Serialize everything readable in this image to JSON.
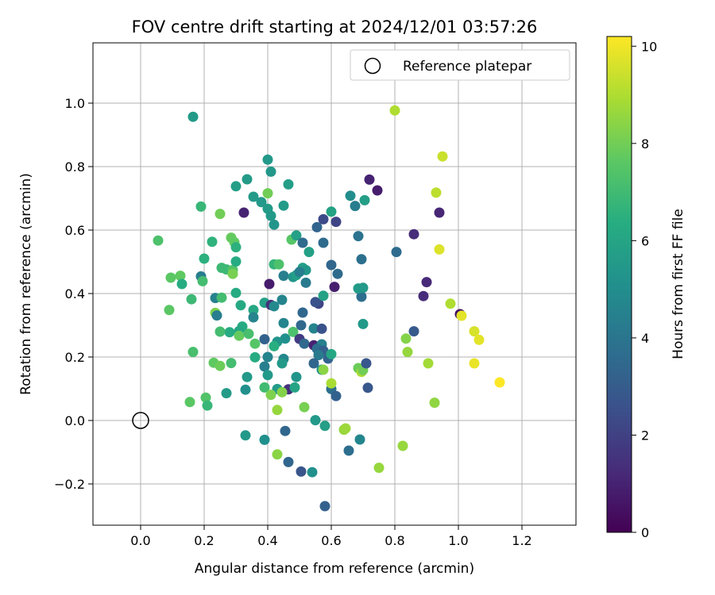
{
  "chart_data": {
    "type": "scatter",
    "title": "FOV centre drift starting at 2024/12/01 03:57:26",
    "xlabel": "Angular distance from reference (arcmin)",
    "ylabel": "Rotation from reference (arcmin)",
    "xlim": [
      -0.15,
      1.37
    ],
    "ylim": [
      -0.33,
      1.19
    ],
    "xticks": [
      0.0,
      0.2,
      0.4,
      0.6,
      0.8,
      1.0,
      1.2
    ],
    "xtick_labels": [
      "0.0",
      "0.2",
      "0.4",
      "0.6",
      "0.8",
      "1.0",
      "1.2"
    ],
    "yticks": [
      -0.2,
      0.0,
      0.2,
      0.4,
      0.6,
      0.8,
      1.0
    ],
    "ytick_labels": [
      "−0.2",
      "0.0",
      "0.2",
      "0.4",
      "0.6",
      "0.8",
      "1.0"
    ],
    "grid": true,
    "colormap": "viridis",
    "colorbar": {
      "label": "Hours from first FF file",
      "range": [
        0,
        10.2
      ],
      "ticks": [
        0,
        2,
        4,
        6,
        8,
        10
      ],
      "tick_labels": [
        "0",
        "2",
        "4",
        "6",
        "8",
        "10"
      ]
    },
    "legend": {
      "position": "top-right",
      "entries": [
        {
          "label": "Reference platepar",
          "marker": "open-circle"
        }
      ]
    },
    "reference_point": {
      "x": 0.0,
      "y": 0.0
    },
    "points": [
      [
        0.165,
        0.957,
        5.6
      ],
      [
        0.4,
        0.822,
        5.5
      ],
      [
        0.41,
        0.784,
        5.4
      ],
      [
        0.335,
        0.76,
        5.6
      ],
      [
        0.3,
        0.738,
        5.7
      ],
      [
        0.465,
        0.744,
        5.7
      ],
      [
        0.355,
        0.705,
        5.6
      ],
      [
        0.38,
        0.688,
        5.5
      ],
      [
        0.4,
        0.667,
        5.6
      ],
      [
        0.45,
        0.677,
        5.6
      ],
      [
        0.41,
        0.645,
        5.5
      ],
      [
        0.42,
        0.617,
        5.3
      ],
      [
        0.4,
        0.716,
        8.0
      ],
      [
        0.19,
        0.674,
        6.8
      ],
      [
        0.25,
        0.651,
        8.0
      ],
      [
        0.325,
        0.655,
        1.0
      ],
      [
        0.055,
        0.567,
        7.3
      ],
      [
        0.225,
        0.563,
        6.6
      ],
      [
        0.285,
        0.576,
        7.8
      ],
      [
        0.295,
        0.562,
        7.7
      ],
      [
        0.3,
        0.546,
        6.5
      ],
      [
        0.2,
        0.51,
        6.5
      ],
      [
        0.255,
        0.481,
        6.9
      ],
      [
        0.27,
        0.476,
        6.9
      ],
      [
        0.29,
        0.474,
        7.4
      ],
      [
        0.3,
        0.501,
        6.3
      ],
      [
        0.29,
        0.462,
        8.1
      ],
      [
        0.095,
        0.45,
        7.6
      ],
      [
        0.125,
        0.456,
        7.7
      ],
      [
        0.19,
        0.454,
        4.3
      ],
      [
        0.195,
        0.439,
        7.1
      ],
      [
        0.13,
        0.43,
        6.3
      ],
      [
        0.16,
        0.382,
        6.9
      ],
      [
        0.09,
        0.348,
        7.6
      ],
      [
        0.235,
        0.386,
        4.5
      ],
      [
        0.255,
        0.387,
        7.1
      ],
      [
        0.3,
        0.402,
        6.3
      ],
      [
        0.315,
        0.363,
        6.2
      ],
      [
        0.235,
        0.339,
        8.2
      ],
      [
        0.24,
        0.331,
        4.3
      ],
      [
        0.355,
        0.348,
        6.1
      ],
      [
        0.355,
        0.325,
        4.6
      ],
      [
        0.39,
        0.371,
        5.8
      ],
      [
        0.41,
        0.364,
        1.4
      ],
      [
        0.445,
        0.38,
        4.6
      ],
      [
        0.42,
        0.36,
        4.8
      ],
      [
        0.405,
        0.43,
        0.8
      ],
      [
        0.42,
        0.492,
        6.7
      ],
      [
        0.435,
        0.492,
        7.3
      ],
      [
        0.45,
        0.456,
        4.4
      ],
      [
        0.475,
        0.57,
        7.5
      ],
      [
        0.49,
        0.583,
        5.8
      ],
      [
        0.51,
        0.56,
        3.6
      ],
      [
        0.53,
        0.531,
        5.8
      ],
      [
        0.555,
        0.609,
        3.3
      ],
      [
        0.575,
        0.634,
        2.3
      ],
      [
        0.6,
        0.658,
        5.9
      ],
      [
        0.615,
        0.626,
        2.1
      ],
      [
        0.575,
        0.56,
        3.6
      ],
      [
        0.6,
        0.49,
        3.4
      ],
      [
        0.62,
        0.462,
        3.6
      ],
      [
        0.61,
        0.421,
        0.9
      ],
      [
        0.51,
        0.481,
        5.8
      ],
      [
        0.52,
        0.474,
        5.4
      ],
      [
        0.48,
        0.452,
        5.3
      ],
      [
        0.49,
        0.458,
        5.7
      ],
      [
        0.5,
        0.468,
        4.3
      ],
      [
        0.52,
        0.434,
        4.2
      ],
      [
        0.56,
        0.368,
        2.1
      ],
      [
        0.55,
        0.373,
        2.6
      ],
      [
        0.575,
        0.393,
        5.9
      ],
      [
        0.51,
        0.34,
        3.4
      ],
      [
        0.45,
        0.307,
        4.6
      ],
      [
        0.455,
        0.258,
        5.1
      ],
      [
        0.43,
        0.248,
        5.3
      ],
      [
        0.42,
        0.234,
        6.4
      ],
      [
        0.39,
        0.256,
        3.2
      ],
      [
        0.36,
        0.242,
        7.5
      ],
      [
        0.32,
        0.296,
        6.3
      ],
      [
        0.31,
        0.282,
        6.1
      ],
      [
        0.28,
        0.278,
        6.3
      ],
      [
        0.25,
        0.28,
        7.1
      ],
      [
        0.31,
        0.267,
        7.8
      ],
      [
        0.34,
        0.273,
        7.2
      ],
      [
        0.48,
        0.279,
        7.3
      ],
      [
        0.5,
        0.257,
        1.8
      ],
      [
        0.515,
        0.242,
        3.5
      ],
      [
        0.505,
        0.3,
        3.5
      ],
      [
        0.545,
        0.29,
        4.6
      ],
      [
        0.57,
        0.289,
        2.6
      ],
      [
        0.545,
        0.237,
        1.0
      ],
      [
        0.57,
        0.24,
        4.5
      ],
      [
        0.555,
        0.226,
        3.7
      ],
      [
        0.575,
        0.22,
        3.2
      ],
      [
        0.56,
        0.206,
        4.2
      ],
      [
        0.59,
        0.195,
        3.3
      ],
      [
        0.6,
        0.209,
        6.1
      ],
      [
        0.545,
        0.18,
        3.4
      ],
      [
        0.57,
        0.16,
        5.1
      ],
      [
        0.575,
        0.16,
        8.4
      ],
      [
        0.36,
        0.199,
        6.3
      ],
      [
        0.4,
        0.2,
        4.6
      ],
      [
        0.45,
        0.194,
        4.7
      ],
      [
        0.39,
        0.17,
        4.4
      ],
      [
        0.4,
        0.143,
        5.5
      ],
      [
        0.445,
        0.18,
        5.5
      ],
      [
        0.49,
        0.137,
        5.3
      ],
      [
        0.23,
        0.182,
        7.7
      ],
      [
        0.25,
        0.172,
        7.9
      ],
      [
        0.285,
        0.181,
        7.1
      ],
      [
        0.165,
        0.216,
        7.2
      ],
      [
        0.335,
        0.137,
        5.5
      ],
      [
        0.27,
        0.086,
        5.6
      ],
      [
        0.33,
        0.097,
        5.1
      ],
      [
        0.39,
        0.104,
        7.0
      ],
      [
        0.43,
        0.099,
        5.6
      ],
      [
        0.465,
        0.098,
        1.4
      ],
      [
        0.485,
        0.104,
        6.0
      ],
      [
        0.41,
        0.081,
        8.2
      ],
      [
        0.445,
        0.089,
        8.3
      ],
      [
        0.155,
        0.058,
        7.6
      ],
      [
        0.205,
        0.072,
        7.4
      ],
      [
        0.21,
        0.047,
        6.8
      ],
      [
        0.43,
        0.033,
        8.6
      ],
      [
        0.515,
        0.042,
        8.1
      ],
      [
        0.6,
        0.099,
        3.7
      ],
      [
        0.6,
        0.117,
        8.9
      ],
      [
        0.615,
        0.077,
        3.2
      ],
      [
        0.55,
        0.001,
        5.5
      ],
      [
        0.58,
        -0.017,
        5.7
      ],
      [
        0.455,
        -0.033,
        3.4
      ],
      [
        0.33,
        -0.047,
        5.5
      ],
      [
        0.39,
        -0.061,
        5.1
      ],
      [
        0.43,
        -0.107,
        8.4
      ],
      [
        0.465,
        -0.131,
        3.4
      ],
      [
        0.505,
        -0.161,
        2.7
      ],
      [
        0.54,
        -0.163,
        5.1
      ],
      [
        0.58,
        -0.27,
        3.2
      ],
      [
        0.64,
        -0.029,
        8.6
      ],
      [
        0.645,
        -0.025,
        8.7
      ],
      [
        0.655,
        -0.095,
        3.7
      ],
      [
        0.69,
        -0.06,
        4.7
      ],
      [
        0.75,
        -0.149,
        8.6
      ],
      [
        0.825,
        -0.08,
        8.6
      ],
      [
        0.685,
        0.165,
        7.9
      ],
      [
        0.695,
        0.153,
        8.9
      ],
      [
        0.7,
        0.159,
        8.0
      ],
      [
        0.71,
        0.18,
        2.8
      ],
      [
        0.715,
        0.103,
        2.8
      ],
      [
        0.7,
        0.304,
        5.5
      ],
      [
        0.695,
        0.39,
        3.7
      ],
      [
        0.685,
        0.416,
        5.6
      ],
      [
        0.7,
        0.418,
        5.5
      ],
      [
        0.695,
        0.508,
        3.8
      ],
      [
        0.685,
        0.581,
        3.9
      ],
      [
        0.66,
        0.708,
        5.0
      ],
      [
        0.675,
        0.676,
        4.3
      ],
      [
        0.705,
        0.694,
        5.7
      ],
      [
        0.72,
        0.759,
        1.0
      ],
      [
        0.745,
        0.725,
        0.8
      ],
      [
        0.805,
        0.531,
        3.6
      ],
      [
        0.835,
        0.258,
        8.3
      ],
      [
        0.84,
        0.216,
        8.6
      ],
      [
        0.86,
        0.281,
        2.9
      ],
      [
        0.86,
        0.587,
        1.3
      ],
      [
        0.89,
        0.392,
        1.3
      ],
      [
        0.9,
        0.436,
        1.2
      ],
      [
        0.905,
        0.18,
        8.8
      ],
      [
        0.925,
        0.056,
        8.5
      ],
      [
        0.93,
        0.718,
        9.2
      ],
      [
        0.94,
        0.655,
        1.1
      ],
      [
        0.94,
        0.539,
        9.7
      ],
      [
        0.95,
        0.832,
        9.4
      ],
      [
        0.975,
        0.368,
        9.0
      ],
      [
        1.005,
        0.335,
        0.4
      ],
      [
        1.01,
        0.33,
        9.8
      ],
      [
        1.05,
        0.281,
        9.6
      ],
      [
        1.065,
        0.254,
        9.8
      ],
      [
        1.05,
        0.18,
        9.9
      ],
      [
        1.13,
        0.12,
        10.2
      ],
      [
        0.8,
        0.977,
        9.0
      ]
    ]
  }
}
